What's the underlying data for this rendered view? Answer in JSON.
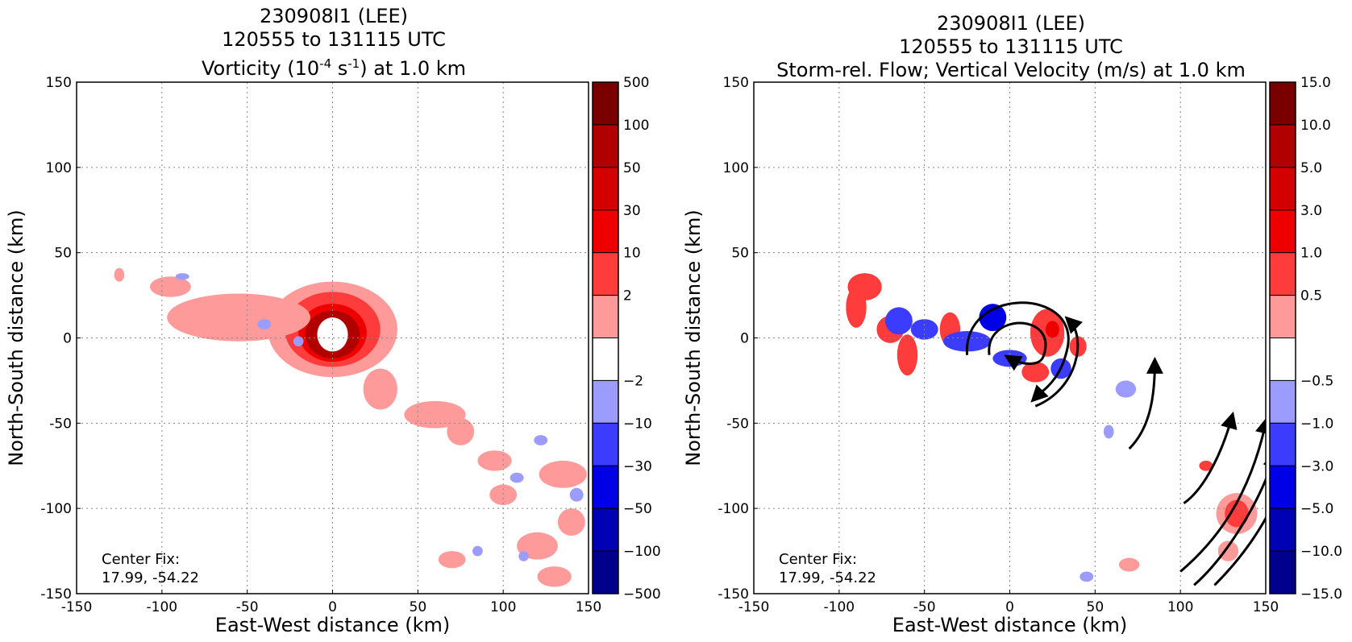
{
  "chart_data": [
    {
      "type": "heatmap",
      "title_lines": [
        "230908I1 (LEE)",
        "120555 to 131115 UTC"
      ],
      "title_var": {
        "prefix": "Vorticity (10",
        "sup1": "-4",
        "mid": " s",
        "sup2": "-1",
        "suffix": ") at 1.0 km"
      },
      "xlabel": "East-West distance (km)",
      "ylabel": "North-South distance (km)",
      "xlim": [
        -150,
        150
      ],
      "ylim": [
        -150,
        150
      ],
      "xticks": [
        -150,
        -100,
        -50,
        0,
        50,
        100,
        150
      ],
      "yticks": [
        -150,
        -100,
        -50,
        0,
        50,
        100,
        150
      ],
      "grid": true,
      "annotation_lines": [
        "Center Fix:",
        "17.99, -54.22"
      ],
      "colorbar": {
        "labels": [
          "500",
          "100",
          "50",
          "30",
          "10",
          "2",
          "−2",
          "−10",
          "−30",
          "−50",
          "−100",
          "−500"
        ],
        "colors": [
          "#7a0000",
          "#b00000",
          "#d40000",
          "#ee0000",
          "#ff3c3c",
          "#ff9a9a",
          "#ffffff",
          "#9c9cff",
          "#3c3cff",
          "#0000e6",
          "#0000b4",
          "#00008c"
        ]
      },
      "features": [
        {
          "x": 0,
          "y": 5,
          "rx": 38,
          "ry": 28,
          "color": "#ff9a9a"
        },
        {
          "x": 0,
          "y": 5,
          "rx": 28,
          "ry": 22,
          "color": "#ff3c3c"
        },
        {
          "x": 0,
          "y": 3,
          "rx": 20,
          "ry": 17,
          "color": "#ee0000"
        },
        {
          "x": 0,
          "y": 2,
          "rx": 16,
          "ry": 14,
          "color": "#b00000"
        },
        {
          "x": 0,
          "y": 2,
          "rx": 9,
          "ry": 10,
          "color": "#ffffff"
        },
        {
          "x": -55,
          "y": 12,
          "rx": 42,
          "ry": 14,
          "color": "#ff9a9a"
        },
        {
          "x": -95,
          "y": 30,
          "rx": 12,
          "ry": 6,
          "color": "#ff9a9a"
        },
        {
          "x": -125,
          "y": 37,
          "rx": 3,
          "ry": 4,
          "color": "#ff9a9a"
        },
        {
          "x": 28,
          "y": -30,
          "rx": 10,
          "ry": 12,
          "color": "#ff9a9a"
        },
        {
          "x": 60,
          "y": -45,
          "rx": 18,
          "ry": 8,
          "color": "#ff9a9a"
        },
        {
          "x": 75,
          "y": -55,
          "rx": 8,
          "ry": 8,
          "color": "#ff9a9a"
        },
        {
          "x": 95,
          "y": -72,
          "rx": 10,
          "ry": 6,
          "color": "#ff9a9a"
        },
        {
          "x": 100,
          "y": -92,
          "rx": 8,
          "ry": 6,
          "color": "#ff9a9a"
        },
        {
          "x": 135,
          "y": -80,
          "rx": 14,
          "ry": 8,
          "color": "#ff9a9a"
        },
        {
          "x": 120,
          "y": -122,
          "rx": 12,
          "ry": 8,
          "color": "#ff9a9a"
        },
        {
          "x": 140,
          "y": -108,
          "rx": 8,
          "ry": 8,
          "color": "#ff9a9a"
        },
        {
          "x": 70,
          "y": -130,
          "rx": 8,
          "ry": 5,
          "color": "#ff9a9a"
        },
        {
          "x": 130,
          "y": -140,
          "rx": 10,
          "ry": 6,
          "color": "#ff9a9a"
        },
        {
          "x": -40,
          "y": 8,
          "rx": 4,
          "ry": 3,
          "color": "#9c9cff"
        },
        {
          "x": -20,
          "y": -2,
          "rx": 3,
          "ry": 3,
          "color": "#9c9cff"
        },
        {
          "x": -88,
          "y": 36,
          "rx": 4,
          "ry": 2,
          "color": "#9c9cff"
        },
        {
          "x": 122,
          "y": -60,
          "rx": 4,
          "ry": 3,
          "color": "#9c9cff"
        },
        {
          "x": 108,
          "y": -82,
          "rx": 4,
          "ry": 3,
          "color": "#9c9cff"
        },
        {
          "x": 143,
          "y": -92,
          "rx": 4,
          "ry": 4,
          "color": "#9c9cff"
        },
        {
          "x": 112,
          "y": -128,
          "rx": 3,
          "ry": 3,
          "color": "#9c9cff"
        },
        {
          "x": 85,
          "y": -125,
          "rx": 3,
          "ry": 3,
          "color": "#9c9cff"
        }
      ]
    },
    {
      "type": "heatmap",
      "title_lines": [
        "230908I1 (LEE)",
        "120555 to 131115 UTC"
      ],
      "title_var": {
        "prefix": "Storm-rel. Flow; Vertical Velocity (m/s) at 1.0 km",
        "sup1": "",
        "mid": "",
        "sup2": "",
        "suffix": ""
      },
      "xlabel": "East-West distance (km)",
      "ylabel": "North-South distance (km)",
      "xlim": [
        -150,
        150
      ],
      "ylim": [
        -150,
        150
      ],
      "xticks": [
        -150,
        -100,
        -50,
        0,
        50,
        100,
        150
      ],
      "yticks": [
        -150,
        -100,
        -50,
        0,
        50,
        100,
        150
      ],
      "grid": true,
      "annotation_lines": [
        "Center Fix:",
        "17.99, -54.22"
      ],
      "colorbar": {
        "labels": [
          "15.0",
          "10.0",
          "5.0",
          "3.0",
          "1.0",
          "0.5",
          "−0.5",
          "−1.0",
          "−3.0",
          "−5.0",
          "−10.0",
          "−15.0"
        ],
        "colors": [
          "#7a0000",
          "#b00000",
          "#d40000",
          "#ee0000",
          "#ff3c3c",
          "#ff9a9a",
          "#ffffff",
          "#9c9cff",
          "#3c3cff",
          "#0000e6",
          "#0000b4",
          "#00008c"
        ]
      },
      "features": [
        {
          "x": -85,
          "y": 30,
          "rx": 10,
          "ry": 8,
          "color": "#ff3c3c"
        },
        {
          "x": -90,
          "y": 18,
          "rx": 6,
          "ry": 12,
          "color": "#ff3c3c"
        },
        {
          "x": -70,
          "y": 5,
          "rx": 8,
          "ry": 8,
          "color": "#ff3c3c"
        },
        {
          "x": -60,
          "y": -10,
          "rx": 6,
          "ry": 12,
          "color": "#ff3c3c"
        },
        {
          "x": -65,
          "y": 10,
          "rx": 8,
          "ry": 8,
          "color": "#3c3cff"
        },
        {
          "x": -50,
          "y": 5,
          "rx": 8,
          "ry": 6,
          "color": "#3c3cff"
        },
        {
          "x": -35,
          "y": 5,
          "rx": 6,
          "ry": 10,
          "color": "#ff3c3c"
        },
        {
          "x": -25,
          "y": -2,
          "rx": 14,
          "ry": 6,
          "color": "#3c3cff"
        },
        {
          "x": -10,
          "y": 12,
          "rx": 8,
          "ry": 8,
          "color": "#0000e6"
        },
        {
          "x": 22,
          "y": 3,
          "rx": 10,
          "ry": 14,
          "color": "#ff3c3c"
        },
        {
          "x": 25,
          "y": 5,
          "rx": 4,
          "ry": 5,
          "color": "#ee0000"
        },
        {
          "x": 15,
          "y": -20,
          "rx": 8,
          "ry": 6,
          "color": "#ff3c3c"
        },
        {
          "x": 0,
          "y": -12,
          "rx": 10,
          "ry": 5,
          "color": "#3c3cff"
        },
        {
          "x": 30,
          "y": -18,
          "rx": 6,
          "ry": 6,
          "color": "#3c3cff"
        },
        {
          "x": 40,
          "y": -5,
          "rx": 5,
          "ry": 6,
          "color": "#ff3c3c"
        },
        {
          "x": 68,
          "y": -30,
          "rx": 6,
          "ry": 5,
          "color": "#9c9cff"
        },
        {
          "x": 58,
          "y": -55,
          "rx": 3,
          "ry": 4,
          "color": "#9c9cff"
        },
        {
          "x": 115,
          "y": -75,
          "rx": 4,
          "ry": 3,
          "color": "#ff3c3c"
        },
        {
          "x": 133,
          "y": -103,
          "rx": 12,
          "ry": 12,
          "color": "#ff9a9a"
        },
        {
          "x": 133,
          "y": -103,
          "rx": 7,
          "ry": 8,
          "color": "#ff3c3c"
        },
        {
          "x": 128,
          "y": -125,
          "rx": 6,
          "ry": 6,
          "color": "#ff9a9a"
        },
        {
          "x": 70,
          "y": -133,
          "rx": 6,
          "ry": 4,
          "color": "#ff9a9a"
        },
        {
          "x": 45,
          "y": -140,
          "rx": 4,
          "ry": 3,
          "color": "#9c9cff"
        }
      ],
      "streamlines": [
        "M -25 -10 C -28 30, 40 30, 34 -5 C 30 -25, 20 -30, 15 -35",
        "M -12 -10 C -15 15, 28 15, 20 -10 C 18 -18, 5 -15, 0 -12",
        "M 15 -40 C 40 -30, 45 0, 35 10",
        "M 70 -65 C 80 -55, 85 -40, 85 -15",
        "M 102 -97 C 115 -88, 125 -65, 130 -47",
        "M 100 -137 C 120 -120, 140 -95, 150 -50",
        "M 108 -145 C 125 -130, 145 -100, 155 -70",
        "M 120 -145 C 135 -130, 150 -110, 160 -85"
      ]
    }
  ]
}
